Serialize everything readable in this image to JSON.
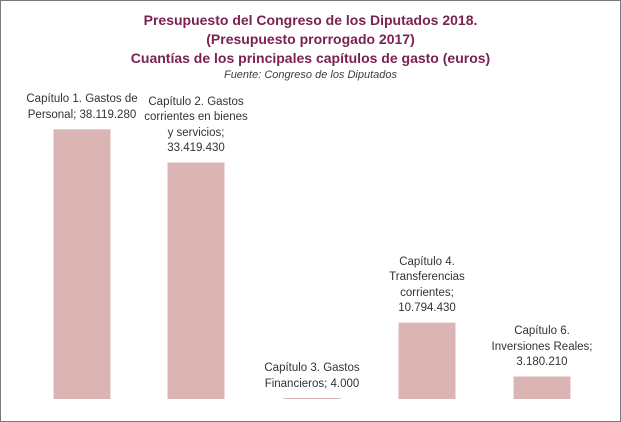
{
  "colors": {
    "title": "#7a2250",
    "source": "#404040",
    "bar": "#dbb5b4",
    "label": "#333333",
    "border": "#7a7a7a"
  },
  "chart_data": {
    "type": "bar",
    "title": "Presupuesto del Congreso de los Diputados 2018.",
    "subtitle": "(Presupuesto prorrogado 2017)",
    "subtitle2": "Cuantías de los principales capítulos de gasto (euros)",
    "source": "Fuente:  Congreso de los Diputados",
    "categories": [
      "Capítulo 1. Gastos de Personal",
      "Capítulo 2. Gastos corrientes en bienes y servicios",
      "Capítulo 3. Gastos Financieros",
      "Capítulo 4. Transferencias corrientes",
      "Capítulo 6. Inversiones Reales"
    ],
    "values": [
      38119280,
      33419430,
      4000,
      10794430,
      3180210
    ],
    "data_labels": [
      "Capítulo 1. Gastos de Personal; 38.119.280",
      "Capítulo 2. Gastos corrientes en bienes y servicios; 33.419.430",
      "Capítulo 3. Gastos Financieros; 4.000",
      "Capítulo 4. Transferencias corrientes; 10.794.430",
      "Capítulo 6. Inversiones Reales; 3.180.210"
    ],
    "xlabel": "",
    "ylabel": "",
    "ylim": [
      0,
      40000000
    ],
    "grid": false,
    "legend": "none"
  }
}
